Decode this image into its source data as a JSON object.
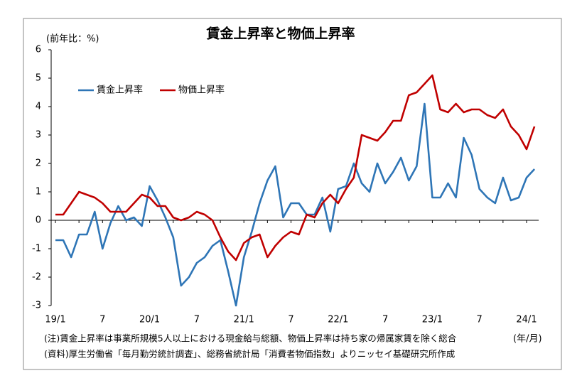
{
  "chart_data": {
    "type": "line",
    "title": "賃金上昇率と物価上昇率",
    "y_label": "(前年比：%)",
    "x_unit": "(年/月)",
    "notes": [
      "(注)賃金上昇率は事業所規模5人以上における現金給与総額、物価上昇率は持ち家の帰属家賃を除く総合",
      "(資料)厚生労働省「毎月勤労統計調査」、総務省統計局「消費者物価指数」よりニッセイ基礎研究所作成"
    ],
    "categories": [
      "19/1",
      null,
      null,
      null,
      null,
      null,
      "7",
      null,
      null,
      null,
      null,
      null,
      "20/1",
      null,
      null,
      null,
      null,
      null,
      "7",
      null,
      null,
      null,
      null,
      null,
      "21/1",
      null,
      null,
      null,
      null,
      null,
      "7",
      null,
      null,
      null,
      null,
      null,
      "22/1",
      null,
      null,
      null,
      null,
      null,
      "7",
      null,
      null,
      null,
      null,
      null,
      "23/1",
      null,
      null,
      null,
      null,
      null,
      "7",
      null,
      null,
      null,
      null,
      null,
      "24/1",
      null
    ],
    "series": [
      {
        "name": "賃金上昇率",
        "color": "#2e75b6",
        "values": [
          -0.7,
          -0.7,
          -1.3,
          -0.5,
          -0.5,
          0.3,
          -1.0,
          -0.1,
          0.5,
          0.0,
          0.1,
          -0.2,
          1.2,
          0.7,
          0.1,
          -0.6,
          -2.3,
          -2.0,
          -1.5,
          -1.3,
          -0.9,
          -0.7,
          -1.8,
          -3.0,
          -1.3,
          -0.4,
          0.6,
          1.4,
          1.9,
          0.1,
          0.6,
          0.6,
          0.2,
          0.2,
          0.8,
          -0.4,
          1.1,
          1.2,
          2.0,
          1.3,
          1.0,
          2.0,
          1.3,
          1.7,
          2.2,
          1.4,
          1.9,
          4.1,
          0.8,
          0.8,
          1.3,
          0.8,
          2.9,
          2.3,
          1.1,
          0.8,
          0.6,
          1.5,
          0.7,
          0.8,
          1.5,
          1.8
        ]
      },
      {
        "name": "物価上昇率",
        "color": "#c00000",
        "values": [
          0.2,
          0.2,
          0.6,
          1.0,
          0.9,
          0.8,
          0.6,
          0.3,
          0.3,
          0.3,
          0.6,
          0.9,
          0.8,
          0.5,
          0.5,
          0.1,
          0.0,
          0.1,
          0.3,
          0.2,
          0.0,
          -0.6,
          -1.1,
          -1.4,
          -0.8,
          -0.6,
          -0.5,
          -1.3,
          -0.9,
          -0.6,
          -0.4,
          -0.5,
          0.2,
          0.1,
          0.6,
          0.9,
          0.6,
          1.1,
          1.5,
          3.0,
          2.9,
          2.8,
          3.1,
          3.5,
          3.5,
          4.4,
          4.5,
          4.8,
          5.1,
          3.9,
          3.8,
          4.1,
          3.8,
          3.9,
          3.9,
          3.7,
          3.6,
          3.9,
          3.3,
          3.0,
          2.5,
          3.3
        ]
      }
    ],
    "ylim": [
      -3,
      6
    ],
    "yticks": [
      -3,
      -2,
      -1,
      0,
      1,
      2,
      3,
      4,
      5,
      6
    ],
    "grid": false,
    "legend": "top-left"
  }
}
